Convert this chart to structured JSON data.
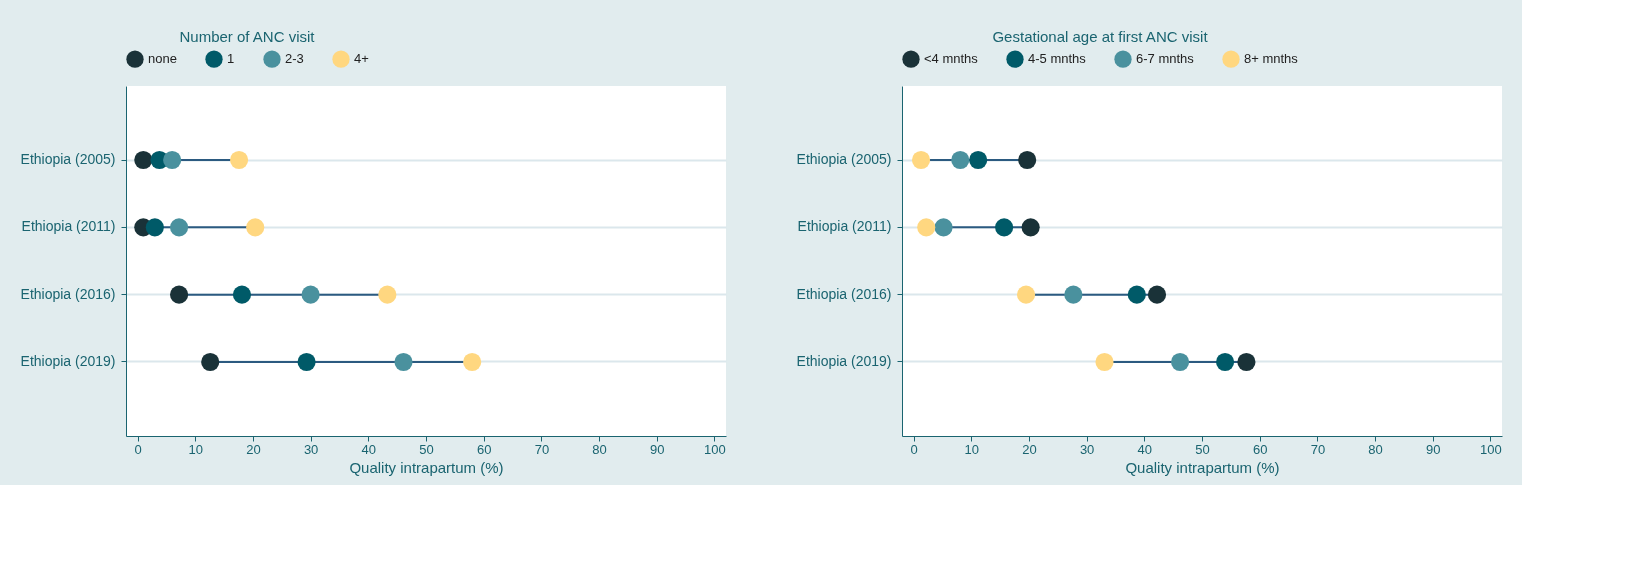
{
  "chart_data": [
    {
      "type": "scatter",
      "legend_title": "Number of ANC visit",
      "xlabel": "Quality intrapartum (%)",
      "categories": [
        "Ethiopia (2005)",
        "Ethiopia (2011)",
        "Ethiopia (2016)",
        "Ethiopia (2019)"
      ],
      "orientation": "horizontal",
      "xlim": [
        -2,
        102
      ],
      "xticks": [
        0,
        10,
        20,
        30,
        40,
        50,
        60,
        70,
        80,
        90,
        100
      ],
      "grid": "y",
      "legend": "top",
      "marker": "circle",
      "series": [
        {
          "name": "none",
          "color": "#1a3238",
          "values": [
            1.0,
            1.0,
            7.2,
            12.6
          ]
        },
        {
          "name": "1",
          "color": "#005a68",
          "values": [
            3.8,
            3.0,
            18.1,
            29.3
          ]
        },
        {
          "name": "2-3",
          "color": "#4a919e",
          "values": [
            6.0,
            7.2,
            30.0,
            46.1
          ]
        },
        {
          "name": "4+",
          "color": "#ffd780",
          "values": [
            17.6,
            20.4,
            43.3,
            58.0
          ]
        }
      ]
    },
    {
      "type": "scatter",
      "legend_title": "Gestational age at first ANC visit",
      "xlabel": "Quality intrapartum (%)",
      "categories": [
        "Ethiopia (2005)",
        "Ethiopia (2011)",
        "Ethiopia (2016)",
        "Ethiopia (2019)"
      ],
      "orientation": "horizontal",
      "xlim": [
        -2,
        102
      ],
      "xticks": [
        0,
        10,
        20,
        30,
        40,
        50,
        60,
        70,
        80,
        90,
        100
      ],
      "grid": "y",
      "legend": "top",
      "marker": "circle",
      "series": [
        {
          "name": "<4 mnths",
          "color": "#1a3238",
          "values": [
            19.7,
            20.3,
            42.2,
            57.7
          ]
        },
        {
          "name": "4-5 mnths",
          "color": "#005a68",
          "values": [
            11.2,
            15.7,
            38.7,
            54.0
          ]
        },
        {
          "name": "6-7 mnths",
          "color": "#4a919e",
          "values": [
            8.1,
            5.2,
            27.7,
            46.2
          ]
        },
        {
          "name": "8+ mnths",
          "color": "#ffd780",
          "values": [
            1.3,
            2.2,
            19.5,
            33.1
          ]
        }
      ]
    }
  ]
}
